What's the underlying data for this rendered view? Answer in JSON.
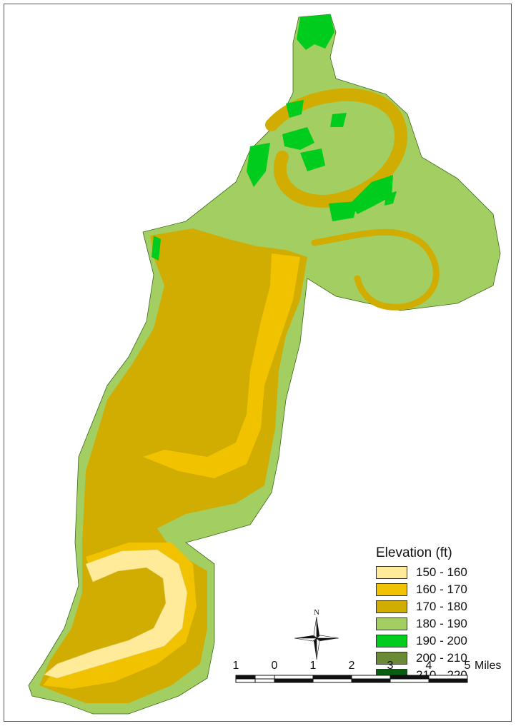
{
  "legend": {
    "title": "Elevation (ft)",
    "items": [
      {
        "label": "150 - 160",
        "color": "#ffeb99"
      },
      {
        "label": "160 - 170",
        "color": "#f0c200"
      },
      {
        "label": "170 - 180",
        "color": "#d0ad00"
      },
      {
        "label": "180 - 190",
        "color": "#a3cf62"
      },
      {
        "label": "190 - 200",
        "color": "#00cc1e"
      },
      {
        "label": "200 - 210",
        "color": "#6b8a36"
      },
      {
        "label": "210 - 220",
        "color": "#0a5e12"
      }
    ]
  },
  "scale_bar": {
    "ticks": [
      "1",
      "0",
      "1",
      "2",
      "3",
      "4",
      "5"
    ],
    "unit": "Miles"
  },
  "north_arrow": {
    "label": "N"
  }
}
